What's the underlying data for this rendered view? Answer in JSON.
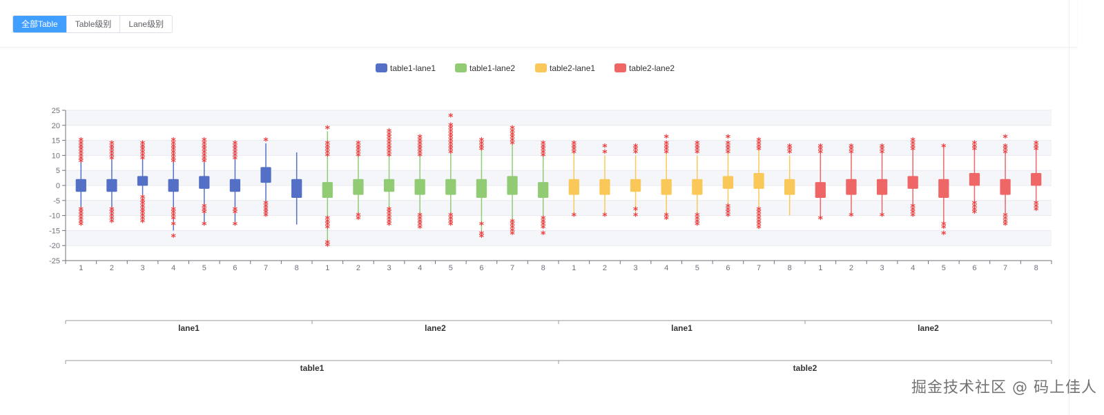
{
  "toolbar": {
    "buttons": [
      {
        "label": "全部Table",
        "active": true
      },
      {
        "label": "Table级别",
        "active": false
      },
      {
        "label": "Lane级别",
        "active": false
      }
    ]
  },
  "colors": {
    "accent": "#409eff",
    "outlier": "#ee3f3f",
    "axis": "#6e7079",
    "band": "#f4f6fa"
  },
  "watermark": "掘金技术社区 @ 码上佳人",
  "chart_data": {
    "type": "boxplot",
    "ylim": [
      -25,
      25
    ],
    "yticks": [
      25,
      20,
      15,
      10,
      5,
      0,
      -5,
      -10,
      -15,
      -20,
      -25
    ],
    "categories": [
      "1",
      "2",
      "3",
      "4",
      "5",
      "6",
      "7",
      "8",
      "1",
      "2",
      "3",
      "4",
      "5",
      "6",
      "7",
      "8",
      "1",
      "2",
      "3",
      "4",
      "5",
      "6",
      "7",
      "8",
      "1",
      "2",
      "3",
      "4",
      "5",
      "6",
      "7",
      "8"
    ],
    "lane_labels": [
      "lane1",
      "lane2",
      "lane1",
      "lane2"
    ],
    "table_labels": [
      "table1",
      "table2"
    ],
    "series": [
      {
        "name": "table1-lane1",
        "color": "#5470c6",
        "boxes": [
          {
            "min": -12,
            "q1": -2,
            "median": 0,
            "q3": 2,
            "max": 14
          },
          {
            "min": -12,
            "q1": -2,
            "median": 0,
            "q3": 2,
            "max": 13
          },
          {
            "min": -12,
            "q1": 0,
            "median": 1,
            "q3": 3,
            "max": 14
          },
          {
            "min": -15,
            "q1": -2,
            "median": 0,
            "q3": 2,
            "max": 14
          },
          {
            "min": -13,
            "q1": -1,
            "median": 1,
            "q3": 3,
            "max": 14
          },
          {
            "min": -12,
            "q1": -2,
            "median": 0,
            "q3": 2,
            "max": 14
          },
          {
            "min": -10,
            "q1": 1,
            "median": 3,
            "q3": 6,
            "max": 14
          },
          {
            "min": -13,
            "q1": -4,
            "median": -1,
            "q3": 2,
            "max": 11
          }
        ],
        "outliers": [
          [
            8,
            9,
            10,
            11,
            12,
            13,
            14,
            15,
            -8,
            -9,
            -10,
            -11,
            -12,
            -13
          ],
          [
            9,
            10,
            11,
            12,
            13,
            14,
            -8,
            -9,
            -10,
            -11,
            -12
          ],
          [
            9,
            10,
            11,
            12,
            13,
            14,
            -4,
            -5,
            -6,
            -7,
            -8,
            -9,
            -10,
            -11,
            -12
          ],
          [
            8,
            9,
            10,
            11,
            12,
            13,
            14,
            15,
            -8,
            -9,
            -10,
            -11,
            -13,
            -17
          ],
          [
            8,
            9,
            10,
            11,
            12,
            13,
            14,
            15,
            -7,
            -8,
            -9,
            -13
          ],
          [
            9,
            10,
            11,
            12,
            13,
            14,
            -8,
            -9,
            -13
          ],
          [
            15,
            -6,
            -7,
            -8,
            -9,
            -10
          ],
          []
        ]
      },
      {
        "name": "table1-lane2",
        "color": "#91cc75",
        "boxes": [
          {
            "min": -18,
            "q1": -4,
            "median": -1,
            "q3": 1,
            "max": 18
          },
          {
            "min": -10,
            "q1": -3,
            "median": 0,
            "q3": 2,
            "max": 13
          },
          {
            "min": -12,
            "q1": -2,
            "median": 0,
            "q3": 2,
            "max": 16
          },
          {
            "min": -12,
            "q1": -3,
            "median": 0,
            "q3": 2,
            "max": 15
          },
          {
            "min": -12,
            "q1": -3,
            "median": 0,
            "q3": 2,
            "max": 16
          },
          {
            "min": -15,
            "q1": -4,
            "median": -1,
            "q3": 2,
            "max": 14
          },
          {
            "min": -14,
            "q1": -3,
            "median": 0,
            "q3": 3,
            "max": 18
          },
          {
            "min": -14,
            "q1": -4,
            "median": -1,
            "q3": 1,
            "max": 13
          }
        ],
        "outliers": [
          [
            10,
            11,
            12,
            13,
            14,
            19,
            -11,
            -12,
            -13,
            -14,
            -19,
            -20
          ],
          [
            10,
            11,
            12,
            13,
            14,
            -10,
            -11
          ],
          [
            10,
            11,
            12,
            13,
            14,
            15,
            16,
            17,
            18,
            -8,
            -9,
            -10,
            -11,
            -12,
            -13
          ],
          [
            10,
            11,
            12,
            13,
            14,
            15,
            16,
            -10,
            -11,
            -12,
            -13,
            -14
          ],
          [
            11,
            12,
            13,
            14,
            15,
            16,
            17,
            18,
            19,
            20,
            23,
            -10,
            -11,
            -12,
            -13
          ],
          [
            12,
            13,
            14,
            15,
            -13,
            -16,
            -17
          ],
          [
            14,
            15,
            16,
            17,
            18,
            19,
            -12,
            -13,
            -14,
            -15,
            -16
          ],
          [
            10,
            11,
            12,
            13,
            14,
            -11,
            -12,
            -13,
            -14,
            -16
          ]
        ]
      },
      {
        "name": "table2-lane1",
        "color": "#fac858",
        "boxes": [
          {
            "min": -10,
            "q1": -3,
            "median": 0,
            "q3": 2,
            "max": 11
          },
          {
            "min": -10,
            "q1": -3,
            "median": 0,
            "q3": 2,
            "max": 10
          },
          {
            "min": -9,
            "q1": -2,
            "median": 0,
            "q3": 2,
            "max": 10
          },
          {
            "min": -10,
            "q1": -3,
            "median": 0,
            "q3": 2,
            "max": 11
          },
          {
            "min": -10,
            "q1": -3,
            "median": 0,
            "q3": 2,
            "max": 10
          },
          {
            "min": -7,
            "q1": -1,
            "median": 1,
            "q3": 3,
            "max": 11
          },
          {
            "min": -7,
            "q1": -1,
            "median": 1,
            "q3": 4,
            "max": 12
          },
          {
            "min": -10,
            "q1": -3,
            "median": 0,
            "q3": 2,
            "max": 10
          }
        ],
        "outliers": [
          [
            11,
            12,
            13,
            14,
            -10
          ],
          [
            11,
            13,
            -10
          ],
          [
            11,
            12,
            13,
            -8,
            -10
          ],
          [
            11,
            12,
            13,
            14,
            16,
            -10,
            -11
          ],
          [
            11,
            12,
            13,
            14,
            -10,
            -11,
            -12,
            -13
          ],
          [
            11,
            12,
            13,
            14,
            16,
            -7,
            -8,
            -9,
            -10
          ],
          [
            12,
            13,
            14,
            15,
            -8,
            -9,
            -10,
            -11,
            -12,
            -13,
            -14
          ],
          [
            11,
            12,
            13
          ]
        ]
      },
      {
        "name": "table2-lane2",
        "color": "#ee6666",
        "boxes": [
          {
            "min": -11,
            "q1": -4,
            "median": -1,
            "q3": 1,
            "max": 11
          },
          {
            "min": -10,
            "q1": -3,
            "median": 0,
            "q3": 2,
            "max": 11
          },
          {
            "min": -10,
            "q1": -3,
            "median": 0,
            "q3": 2,
            "max": 11
          },
          {
            "min": -7,
            "q1": -1,
            "median": 1,
            "q3": 3,
            "max": 12
          },
          {
            "min": -13,
            "q1": -4,
            "median": -1,
            "q3": 2,
            "max": 13
          },
          {
            "min": -5,
            "q1": 0,
            "median": 2,
            "q3": 4,
            "max": 12
          },
          {
            "min": -9,
            "q1": -3,
            "median": 0,
            "q3": 2,
            "max": 11
          },
          {
            "min": -5,
            "q1": 0,
            "median": 2,
            "q3": 4,
            "max": 12
          }
        ],
        "outliers": [
          [
            11,
            12,
            13,
            -11
          ],
          [
            11,
            12,
            13,
            -10
          ],
          [
            11,
            12,
            13,
            -10
          ],
          [
            12,
            13,
            14,
            15,
            -7,
            -8,
            -9,
            -10
          ],
          [
            13,
            -13,
            -14,
            -16
          ],
          [
            12,
            13,
            14,
            -6,
            -7,
            -8,
            -9
          ],
          [
            11,
            12,
            13,
            16,
            -10,
            -11,
            -12,
            -13
          ],
          [
            12,
            13,
            14,
            -6,
            -7,
            -8
          ]
        ]
      }
    ]
  }
}
